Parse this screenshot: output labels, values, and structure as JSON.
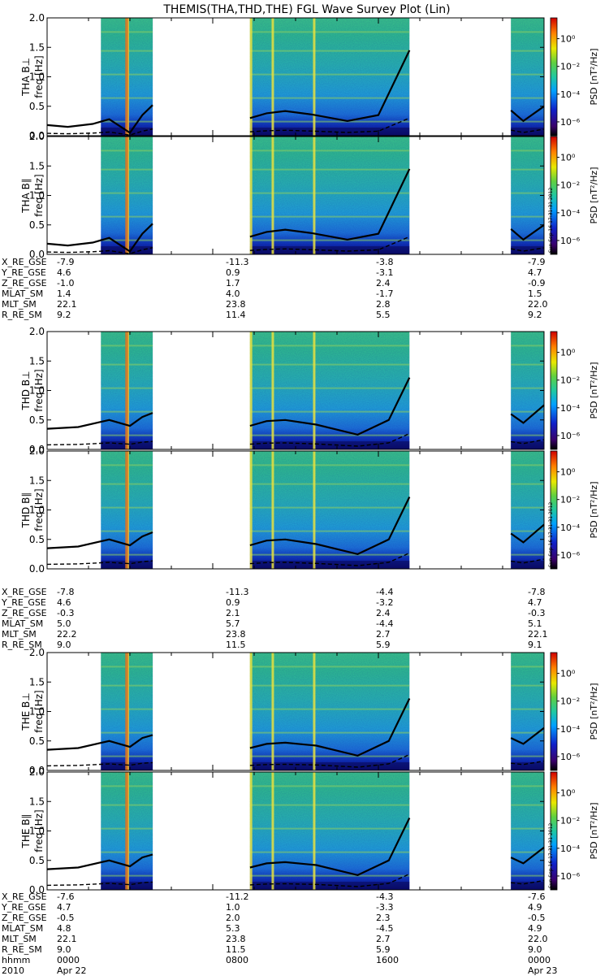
{
  "title": "THEMIS(THA,THD,THE) FGL Wave Survey Plot (Lin)",
  "stamp": "Sun Sep 16 17:31:31 2012",
  "colorbar": {
    "label": "PSD [nT²/Hz]",
    "ticks": [
      "10⁰",
      "10⁻²",
      "10⁻⁴",
      "10⁻⁶"
    ],
    "exponents": [
      0,
      -2,
      -4,
      -6
    ]
  },
  "chart_data": {
    "type": "heatmap",
    "x_range_hours": [
      0,
      24
    ],
    "y_range_hz": [
      0,
      2.0
    ],
    "yticks": [
      "0.0",
      "0.5",
      "1.0",
      "1.5",
      "2.0"
    ],
    "data_intervals_hours": [
      [
        2.6,
        5.1
      ],
      [
        9.8,
        17.5
      ],
      [
        22.4,
        24
      ]
    ],
    "panels": [
      {
        "probe": "THA",
        "component": "B⊥",
        "ylabel": "freq [Hz]",
        "fce_curve": [
          [
            0,
            0.18
          ],
          [
            1,
            0.15
          ],
          [
            2.2,
            0.2
          ],
          [
            3,
            0.28
          ],
          [
            4,
            0.05
          ],
          [
            4.6,
            0.35
          ],
          [
            5.1,
            0.52
          ],
          [
            9.8,
            0.3
          ],
          [
            10.6,
            0.38
          ],
          [
            11.5,
            0.42
          ],
          [
            12.8,
            0.36
          ],
          [
            14.5,
            0.25
          ],
          [
            16,
            0.35
          ],
          [
            17.5,
            1.45
          ],
          [
            22.4,
            0.43
          ],
          [
            23,
            0.25
          ],
          [
            24,
            0.5
          ]
        ]
      },
      {
        "probe": "THA",
        "component": "B∥",
        "ylabel": "freq [Hz]",
        "fce_curve": [
          [
            0,
            0.18
          ],
          [
            1,
            0.15
          ],
          [
            2.2,
            0.2
          ],
          [
            3,
            0.28
          ],
          [
            4,
            0.05
          ],
          [
            4.6,
            0.35
          ],
          [
            5.1,
            0.52
          ],
          [
            9.8,
            0.3
          ],
          [
            10.6,
            0.38
          ],
          [
            11.5,
            0.42
          ],
          [
            12.8,
            0.36
          ],
          [
            14.5,
            0.25
          ],
          [
            16,
            0.35
          ],
          [
            17.5,
            1.45
          ],
          [
            22.4,
            0.43
          ],
          [
            23,
            0.25
          ],
          [
            24,
            0.5
          ]
        ]
      },
      {
        "probe": "THD",
        "component": "B⊥",
        "ylabel": "freq [Hz]",
        "fce_curve": [
          [
            0,
            0.35
          ],
          [
            1.5,
            0.38
          ],
          [
            3,
            0.5
          ],
          [
            4,
            0.4
          ],
          [
            4.6,
            0.55
          ],
          [
            5.1,
            0.62
          ],
          [
            9.8,
            0.4
          ],
          [
            10.6,
            0.48
          ],
          [
            11.5,
            0.5
          ],
          [
            13,
            0.42
          ],
          [
            15,
            0.25
          ],
          [
            16.5,
            0.5
          ],
          [
            17.5,
            1.22
          ],
          [
            22.4,
            0.6
          ],
          [
            23,
            0.45
          ],
          [
            24,
            0.75
          ]
        ]
      },
      {
        "probe": "THD",
        "component": "B∥",
        "ylabel": "freq [Hz]",
        "fce_curve": [
          [
            0,
            0.35
          ],
          [
            1.5,
            0.38
          ],
          [
            3,
            0.5
          ],
          [
            4,
            0.4
          ],
          [
            4.6,
            0.55
          ],
          [
            5.1,
            0.62
          ],
          [
            9.8,
            0.4
          ],
          [
            10.6,
            0.48
          ],
          [
            11.5,
            0.5
          ],
          [
            13,
            0.42
          ],
          [
            15,
            0.25
          ],
          [
            16.5,
            0.5
          ],
          [
            17.5,
            1.22
          ],
          [
            22.4,
            0.6
          ],
          [
            23,
            0.45
          ],
          [
            24,
            0.75
          ]
        ]
      },
      {
        "probe": "THE",
        "component": "B⊥",
        "ylabel": "freq [Hz]",
        "fce_curve": [
          [
            0,
            0.35
          ],
          [
            1.5,
            0.38
          ],
          [
            3,
            0.5
          ],
          [
            4,
            0.4
          ],
          [
            4.6,
            0.55
          ],
          [
            5.1,
            0.6
          ],
          [
            9.8,
            0.38
          ],
          [
            10.6,
            0.45
          ],
          [
            11.5,
            0.47
          ],
          [
            13,
            0.42
          ],
          [
            15,
            0.25
          ],
          [
            16.5,
            0.5
          ],
          [
            17.5,
            1.22
          ],
          [
            22.4,
            0.55
          ],
          [
            23,
            0.45
          ],
          [
            24,
            0.72
          ]
        ]
      },
      {
        "probe": "THE",
        "component": "B∥",
        "ylabel": "freq [Hz]",
        "fce_curve": [
          [
            0,
            0.35
          ],
          [
            1.5,
            0.38
          ],
          [
            3,
            0.5
          ],
          [
            4,
            0.4
          ],
          [
            4.6,
            0.55
          ],
          [
            5.1,
            0.6
          ],
          [
            9.8,
            0.38
          ],
          [
            10.6,
            0.45
          ],
          [
            11.5,
            0.47
          ],
          [
            13,
            0.42
          ],
          [
            15,
            0.25
          ],
          [
            16.5,
            0.5
          ],
          [
            17.5,
            1.22
          ],
          [
            22.4,
            0.55
          ],
          [
            23,
            0.45
          ],
          [
            24,
            0.72
          ]
        ]
      }
    ]
  },
  "ephemeris": [
    {
      "probe": "THA",
      "rows": [
        {
          "label": "X_RE_GSE",
          "values": [
            "-7.9",
            "-11.3",
            "-3.8",
            "-7.9"
          ]
        },
        {
          "label": "Y_RE_GSE",
          "values": [
            "4.6",
            "0.9",
            "-3.1",
            "4.7"
          ]
        },
        {
          "label": "Z_RE_GSE",
          "values": [
            "-1.0",
            "1.7",
            "2.4",
            "-0.9"
          ]
        },
        {
          "label": "MLAT_SM",
          "values": [
            "1.4",
            "4.0",
            "-1.7",
            "1.5"
          ]
        },
        {
          "label": "MLT_SM",
          "values": [
            "22.1",
            "23.8",
            "2.8",
            "22.0"
          ]
        },
        {
          "label": "R_RE_SM",
          "values": [
            "9.2",
            "11.4",
            "5.5",
            "9.2"
          ]
        }
      ]
    },
    {
      "probe": "THD",
      "rows": [
        {
          "label": "X_RE_GSE",
          "values": [
            "-7.8",
            "-11.3",
            "-4.4",
            "-7.8"
          ]
        },
        {
          "label": "Y_RE_GSE",
          "values": [
            "4.6",
            "0.9",
            "-3.2",
            "4.7"
          ]
        },
        {
          "label": "Z_RE_GSE",
          "values": [
            "-0.3",
            "2.1",
            "2.4",
            "-0.3"
          ]
        },
        {
          "label": "MLAT_SM",
          "values": [
            "5.0",
            "5.7",
            "-4.4",
            "5.1"
          ]
        },
        {
          "label": "MLT_SM",
          "values": [
            "22.2",
            "23.8",
            "2.7",
            "22.1"
          ]
        },
        {
          "label": "R_RE_SM",
          "values": [
            "9.0",
            "11.5",
            "5.9",
            "9.1"
          ]
        }
      ]
    },
    {
      "probe": "THE",
      "rows": [
        {
          "label": "X_RE_GSE",
          "values": [
            "-7.6",
            "-11.2",
            "-4.3",
            "-7.6"
          ]
        },
        {
          "label": "Y_RE_GSE",
          "values": [
            "4.7",
            "1.0",
            "-3.3",
            "4.9"
          ]
        },
        {
          "label": "Z_RE_GSE",
          "values": [
            "-0.5",
            "2.0",
            "2.3",
            "-0.5"
          ]
        },
        {
          "label": "MLAT_SM",
          "values": [
            "4.8",
            "5.3",
            "-4.5",
            "4.9"
          ]
        },
        {
          "label": "MLT_SM",
          "values": [
            "22.1",
            "23.8",
            "2.7",
            "22.0"
          ]
        },
        {
          "label": "R_RE_SM",
          "values": [
            "9.0",
            "11.5",
            "5.9",
            "9.0"
          ]
        },
        {
          "label": "hhmm",
          "values": [
            "0000",
            "0800",
            "1600",
            "0000"
          ]
        },
        {
          "label": "2010",
          "values": [
            "Apr 22",
            "",
            "",
            "Apr 23"
          ]
        }
      ]
    }
  ],
  "colors": {
    "background": "#ffffff",
    "axes": "#000000",
    "gap": "#ffffff"
  }
}
